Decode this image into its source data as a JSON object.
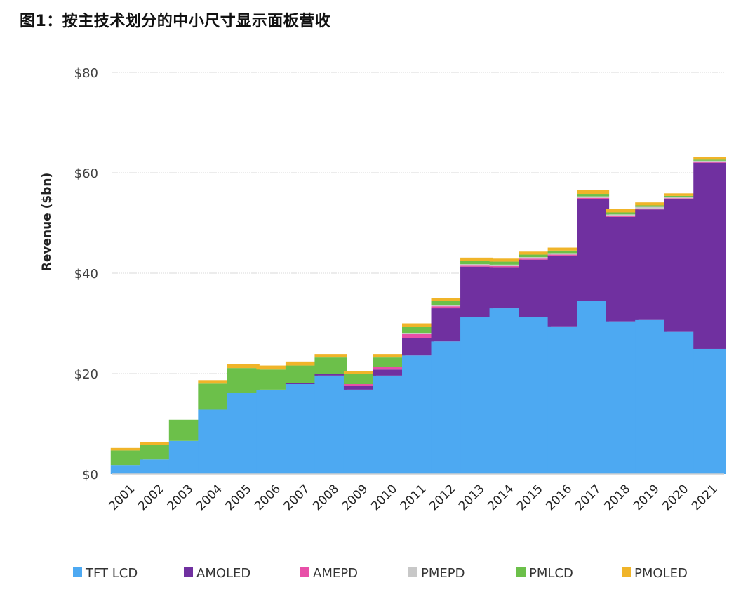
{
  "chart_data": {
    "type": "bar",
    "stacked": true,
    "title": "图1：按主技术划分的中小尺寸显示面板营收",
    "xlabel": "",
    "ylabel": "Revenue ($bn)",
    "ylim": [
      0,
      80
    ],
    "yticks": [
      0,
      20,
      40,
      60,
      80
    ],
    "ytick_labels": [
      "$0",
      "$20",
      "$40",
      "$60",
      "$80"
    ],
    "grid": true,
    "legend_position": "bottom",
    "categories": [
      "2001",
      "2002",
      "2003",
      "2004",
      "2005",
      "2006",
      "2007",
      "2008",
      "2009",
      "2010",
      "2011",
      "2012",
      "2013",
      "2014",
      "2015",
      "2016",
      "2017",
      "2018",
      "2019",
      "2020",
      "2021"
    ],
    "series": [
      {
        "name": "TFT LCD",
        "color": "#4da9f2",
        "values": [
          1.8,
          2.9,
          6.6,
          12.8,
          16.1,
          16.8,
          17.9,
          19.6,
          16.8,
          19.6,
          23.6,
          26.4,
          31.3,
          33.0,
          31.3,
          29.4,
          34.5,
          30.4,
          30.8,
          28.3,
          24.9
        ]
      },
      {
        "name": "AMOLED",
        "color": "#7030a0",
        "values": [
          0,
          0,
          0,
          0,
          0,
          0,
          0.2,
          0.3,
          0.7,
          1.2,
          3.4,
          6.6,
          10.0,
          8.2,
          11.4,
          14.1,
          20.3,
          20.8,
          21.9,
          26.4,
          37.1
        ]
      },
      {
        "name": "AMEPD",
        "color": "#e84fa8",
        "values": [
          0,
          0,
          0,
          0,
          0,
          0,
          0,
          0,
          0.4,
          0.6,
          0.9,
          0.4,
          0.2,
          0.2,
          0.2,
          0.2,
          0.2,
          0.2,
          0.2,
          0.2,
          0.2
        ]
      },
      {
        "name": "PMEPD",
        "color": "#c8c8c8",
        "values": [
          0,
          0,
          0,
          0,
          0,
          0,
          0,
          0,
          0,
          0,
          0.2,
          0.3,
          0.3,
          0.3,
          0.3,
          0.3,
          0.3,
          0.3,
          0.3,
          0.2,
          0.2
        ]
      },
      {
        "name": "PMLCD",
        "color": "#6cc04a",
        "values": [
          2.9,
          2.9,
          4.2,
          5.2,
          5.0,
          4.0,
          3.5,
          3.3,
          2.0,
          1.8,
          1.2,
          0.8,
          0.7,
          0.6,
          0.5,
          0.5,
          0.5,
          0.4,
          0.3,
          0.3,
          0.2
        ]
      },
      {
        "name": "PMOLED",
        "color": "#f0b429",
        "values": [
          0.5,
          0.5,
          0,
          0.7,
          0.8,
          0.8,
          0.8,
          0.7,
          0.6,
          0.7,
          0.7,
          0.5,
          0.6,
          0.6,
          0.6,
          0.6,
          0.8,
          0.7,
          0.6,
          0.5,
          0.6
        ]
      }
    ]
  }
}
